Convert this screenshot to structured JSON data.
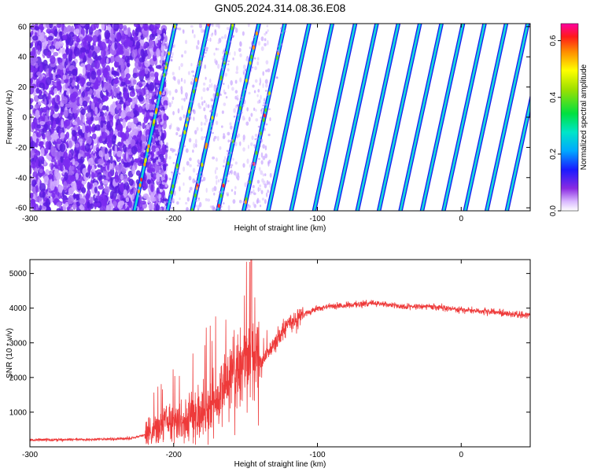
{
  "chart_data": [
    {
      "type": "heatmap",
      "title": "GN05.2024.314.08.36.E08",
      "xlabel": "Height of straight line (km)",
      "ylabel": "Frequency (Hz)",
      "xlim": [
        -300,
        48
      ],
      "ylim": [
        -62,
        62
      ],
      "x_ticks": [
        "-300",
        "-200",
        "-100",
        "0"
      ],
      "y_ticks": [
        "-60",
        "-40",
        "-20",
        "0",
        "20",
        "40",
        "60"
      ],
      "colorbar": {
        "label": "Normalized spectral amplitude",
        "range": [
          0,
          0.66
        ],
        "ticks": [
          "0.0",
          "0.2",
          "0.4",
          "0.6"
        ]
      },
      "noise_region_x": [
        -300,
        -205
      ],
      "stripe_slope_km_per_hz": 0.23,
      "stripes": [
        {
          "x_at_0": -213,
          "amplitude": 0.45
        },
        {
          "x_at_0": -190,
          "amplitude": 0.4
        },
        {
          "x_at_0": -173,
          "amplitude": 0.35
        },
        {
          "x_at_0": -155,
          "amplitude": 0.32
        },
        {
          "x_at_0": -137,
          "amplitude": 0.3
        },
        {
          "x_at_0": -120,
          "amplitude": 0.28
        },
        {
          "x_at_0": -104,
          "amplitude": 0.27
        },
        {
          "x_at_0": -88,
          "amplitude": 0.27
        },
        {
          "x_at_0": -73,
          "amplitude": 0.27
        },
        {
          "x_at_0": -58,
          "amplitude": 0.27
        },
        {
          "x_at_0": -43,
          "amplitude": 0.27
        },
        {
          "x_at_0": -28,
          "amplitude": 0.27
        },
        {
          "x_at_0": -13,
          "amplitude": 0.27
        },
        {
          "x_at_0": 2,
          "amplitude": 0.27
        },
        {
          "x_at_0": 17,
          "amplitude": 0.27
        },
        {
          "x_at_0": 32,
          "amplitude": 0.27
        },
        {
          "x_at_0": 46,
          "amplitude": 0.3
        }
      ]
    },
    {
      "type": "line",
      "xlabel": "Height of straight line (km)",
      "ylabel": "SNR (10 * v/v)",
      "xlim": [
        -300,
        48
      ],
      "ylim": [
        0,
        5400
      ],
      "x_ticks": [
        "-300",
        "-200",
        "-100",
        "0"
      ],
      "y_ticks": [
        "1000",
        "2000",
        "3000",
        "4000",
        "5000"
      ],
      "color": "#ee3a3a",
      "series": [
        {
          "x": [
            -300,
            -260,
            -230,
            -215,
            -205,
            -190,
            -175,
            -165,
            -158,
            -150,
            -145,
            -140,
            -130,
            -120,
            -110,
            -100,
            -90,
            -75,
            -60,
            -40,
            -20,
            0,
            20,
            40,
            48
          ],
          "y": [
            200,
            210,
            240,
            400,
            700,
            900,
            1100,
            1500,
            2200,
            2400,
            2700,
            2400,
            3000,
            3500,
            3800,
            4000,
            4050,
            4100,
            4150,
            4050,
            4050,
            3950,
            3900,
            3800,
            3800
          ]
        }
      ],
      "annotations": {
        "peak": {
          "x": -146,
          "y": 5400
        }
      }
    }
  ]
}
